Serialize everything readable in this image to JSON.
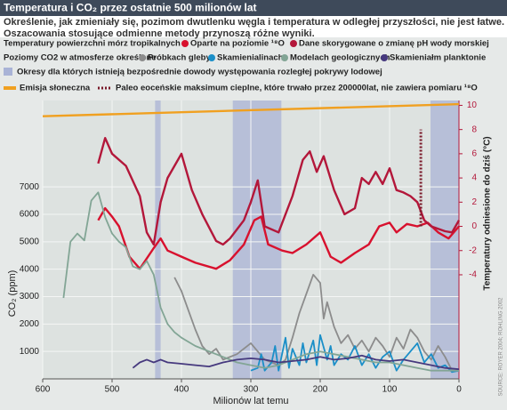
{
  "chart_data": {
    "type": "line",
    "title": "Temperatura i CO₂ przez ostatnie 500 milionów lat",
    "subtitle": [
      "Określenie, jak zmieniały się, pozimom dwutlenku węgla i temperatura w odległej przyszłości, nie jest łatwe.",
      "Oszacowania stosujące odmienne metody przynoszą różne wyniki."
    ],
    "legend_groups": [
      "Temperatury powierzchni mórz tropikalnych",
      "Poziomy CO2 w atmosferze określone"
    ],
    "x_label": "Milionów lat temu",
    "y_label": "CO₂ (ppm)",
    "y2_label": "Temperatury odniesione do dziś (°C)",
    "source": "SOURCE: ROYER 2004; ROHLING 2002",
    "xlim": [
      600,
      0
    ],
    "xticks": [
      600,
      500,
      400,
      300,
      200,
      100,
      0
    ],
    "ylim": [
      0,
      10150
    ],
    "yticks": [
      1000,
      2000,
      3000,
      4000,
      5000,
      6000,
      7000
    ],
    "y2lim": [
      -12.6,
      10.4
    ],
    "y2ticks": [
      -4,
      -2,
      0,
      2,
      4,
      6,
      8,
      10
    ],
    "grid": true,
    "ice_periods": {
      "name": "Okresy dla których istnieją bezpośrednie dowody występowania rozległej pokrywy lodowej",
      "color": "#a9b3d6",
      "ranges": [
        [
          438,
          430
        ],
        [
          326,
          256
        ],
        [
          41,
          0
        ]
      ]
    },
    "petm": {
      "name": "Paleo eoceńskie maksimum cieplne, które trwało przez 200000lat, nie zawiera pomiaru ¹⁸O",
      "color": "#7a1a2a",
      "x": 55,
      "range": [
        0,
        8
      ]
    },
    "series": [
      {
        "name": "Oparte na poziomie ¹⁸O",
        "color": "#d8112e",
        "axis": "y2",
        "x": [
          520,
          510,
          500,
          490,
          475,
          460,
          440,
          430,
          420,
          400,
          380,
          350,
          330,
          310,
          295,
          285,
          275,
          255,
          240,
          220,
          200,
          185,
          170,
          150,
          130,
          115,
          100,
          90,
          75,
          60,
          45,
          30,
          15,
          0
        ],
        "values": [
          0.5,
          1.5,
          0.8,
          0,
          -2.5,
          -3.5,
          -1.8,
          -1,
          -2,
          -2.5,
          -3,
          -3.5,
          -2.8,
          -1.5,
          0.5,
          0.8,
          -1.5,
          -2,
          -2.2,
          -1.5,
          -0.5,
          -2.5,
          -3,
          -2.2,
          -1.5,
          0,
          0.3,
          -0.5,
          0.2,
          0,
          0.3,
          -0.5,
          -1,
          0
        ]
      },
      {
        "name": "Dane skorygowane o zmianę pH wody morskiej",
        "color": "#b3173a",
        "axis": "y2",
        "x": [
          520,
          510,
          500,
          480,
          460,
          450,
          440,
          430,
          420,
          400,
          385,
          370,
          350,
          340,
          330,
          310,
          300,
          290,
          280,
          260,
          240,
          225,
          215,
          205,
          195,
          180,
          165,
          150,
          140,
          130,
          120,
          110,
          100,
          90,
          80,
          70,
          60,
          50,
          40,
          20,
          10,
          0
        ],
        "values": [
          5.2,
          7.3,
          6,
          5,
          2.5,
          -0.5,
          -1.5,
          2,
          4,
          6,
          3,
          1,
          -1.2,
          -1.5,
          -1,
          0.5,
          2,
          3.8,
          0,
          -0.5,
          2.5,
          5.5,
          6.2,
          4.5,
          5.8,
          3,
          1,
          1.5,
          4,
          3.5,
          4.5,
          3.5,
          4.8,
          3,
          2.8,
          2.5,
          2,
          0.5,
          0,
          -0.4,
          -0.5,
          0.5
        ]
      },
      {
        "name": "Próbkach gleby",
        "color": "#8c8c8c",
        "x": [
          410,
          400,
          390,
          380,
          370,
          360,
          350,
          340,
          320,
          300,
          280,
          260,
          250,
          240,
          230,
          220,
          210,
          200,
          195,
          190,
          180,
          170,
          160,
          150,
          140,
          130,
          120,
          110,
          100,
          90,
          80,
          70,
          60,
          50,
          40,
          30,
          20,
          10,
          0
        ],
        "values": [
          3700,
          3200,
          2500,
          1800,
          1200,
          900,
          1100,
          700,
          900,
          1300,
          700,
          500,
          700,
          1500,
          2400,
          3100,
          3800,
          3500,
          2200,
          2800,
          1900,
          1300,
          1600,
          1100,
          1400,
          1000,
          1500,
          1200,
          800,
          1500,
          1100,
          1800,
          1500,
          1000,
          700,
          1200,
          800,
          300,
          280
        ]
      },
      {
        "name": "Skamienialinach",
        "color": "#1b8fc8",
        "x": [
          300,
          290,
          285,
          280,
          270,
          265,
          260,
          250,
          245,
          240,
          230,
          225,
          220,
          210,
          205,
          200,
          190,
          185,
          180,
          170,
          160,
          150,
          140,
          130,
          120,
          110,
          100,
          90,
          80,
          60,
          50,
          40,
          30,
          20,
          10,
          0
        ],
        "values": [
          300,
          400,
          900,
          300,
          600,
          1200,
          300,
          1500,
          400,
          1100,
          500,
          1300,
          600,
          1400,
          500,
          1600,
          700,
          1200,
          500,
          900,
          700,
          1200,
          500,
          900,
          400,
          800,
          1000,
          300,
          700,
          1300,
          600,
          900,
          400,
          500,
          250,
          300
        ]
      },
      {
        "name": "Modelach geologicznych",
        "color": "#82a595",
        "x": [
          570,
          560,
          550,
          540,
          530,
          520,
          510,
          500,
          490,
          480,
          470,
          460,
          450,
          440,
          430,
          420,
          410,
          400,
          380,
          360,
          340,
          320,
          300,
          280,
          260,
          240,
          220,
          200,
          180,
          160,
          140,
          120,
          100,
          80,
          60,
          40,
          20,
          0
        ],
        "values": [
          2950,
          5000,
          5300,
          5050,
          6500,
          6800,
          5900,
          5300,
          5000,
          4800,
          4100,
          4000,
          4300,
          3800,
          2600,
          2000,
          1700,
          1500,
          1200,
          1000,
          800,
          600,
          500,
          400,
          500,
          700,
          900,
          1000,
          900,
          800,
          700,
          600,
          600,
          500,
          400,
          300,
          300,
          300
        ]
      },
      {
        "name": "Skamieniałm planktonie",
        "color": "#46397e",
        "x": [
          470,
          460,
          450,
          440,
          430,
          420,
          400,
          380,
          360,
          340,
          320,
          300,
          280,
          260,
          240,
          220,
          200,
          180,
          160,
          140,
          120,
          100,
          80,
          60,
          40,
          20,
          0
        ],
        "values": [
          400,
          600,
          700,
          600,
          700,
          600,
          550,
          500,
          450,
          600,
          700,
          750,
          700,
          600,
          650,
          700,
          800,
          700,
          750,
          850,
          700,
          650,
          700,
          600,
          500,
          400,
          350
        ]
      },
      {
        "name": "Emisja słoneczna",
        "color": "#f0a020",
        "axis": "y2",
        "x": [
          600,
          0
        ],
        "values": [
          9.1,
          10.1
        ]
      }
    ]
  }
}
